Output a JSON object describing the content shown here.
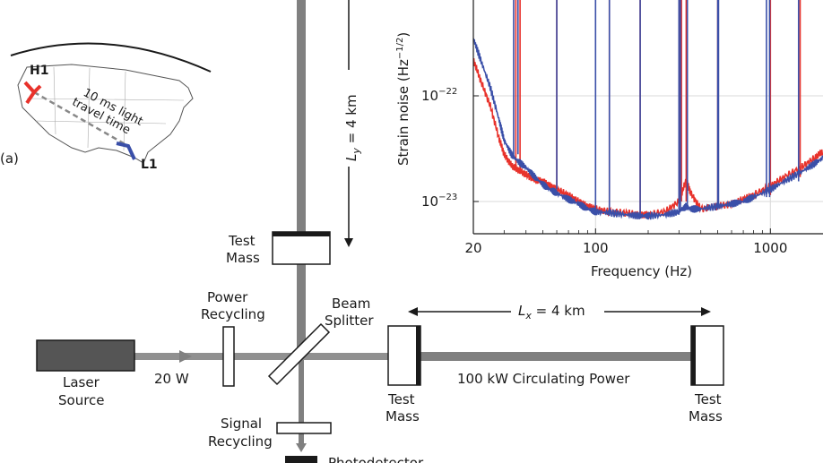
{
  "panel_label": "(a)",
  "map": {
    "site_h1": "H1",
    "site_l1": "L1",
    "travel_time_line1": "10 ms light",
    "travel_time_line2": "travel time",
    "h1_color": "#e8322b",
    "l1_color": "#3a4fa8"
  },
  "interferometer": {
    "ly_label": "L",
    "ly_sub": "y",
    "ly_value": " = 4 km",
    "lx_label": "L",
    "lx_sub": "x",
    "lx_value": " = 4 km",
    "test_mass_top_line1": "Test",
    "test_mass_top_line2": "Mass",
    "power_recycling_line1": "Power",
    "power_recycling_line2": "Recycling",
    "beam_splitter_line1": "Beam",
    "beam_splitter_line2": "Splitter",
    "laser_line1": "Laser",
    "laser_line2": "Source",
    "input_power": "20 W",
    "test_mass_near_line1": "Test",
    "test_mass_near_line2": "Mass",
    "circulating_power": "100 kW Circulating Power",
    "test_mass_far_line1": "Test",
    "test_mass_far_line2": "Mass",
    "signal_recycling_line1": "Signal",
    "signal_recycling_line2": "Recycling",
    "photodetector": "Photodetector"
  },
  "chart_data": {
    "type": "line",
    "xlabel": "Frequency (Hz)",
    "ylabel": "Strain noise (Hz",
    "ylabel_exp": "−1/2",
    "ylabel_close": ")",
    "x_scale": "log",
    "y_scale": "log",
    "xlim": [
      20,
      2000
    ],
    "ylim": [
      5e-24,
      1e-21
    ],
    "x_ticks": [
      20,
      100,
      1000
    ],
    "x_tick_labels": [
      "20",
      "100",
      "1000"
    ],
    "y_ticks": [
      1e-23,
      1e-22
    ],
    "y_tick_base": "10",
    "y_tick_exps": [
      "−23",
      "−22"
    ],
    "grid": true,
    "series": [
      {
        "color": "#e8322b",
        "x": [
          20,
          22,
          25,
          28,
          30,
          33,
          36,
          40,
          45,
          50,
          55,
          60,
          70,
          80,
          90,
          100,
          120,
          150,
          180,
          200,
          250,
          300,
          330,
          350,
          400,
          500,
          600,
          700,
          800,
          1000,
          1200,
          1500,
          1800,
          2000
        ],
        "y": [
          2.2e-22,
          1.4e-22,
          8e-23,
          4e-23,
          2.8e-23,
          2.2e-23,
          2e-23,
          1.8e-23,
          1.6e-23,
          1.55e-23,
          1.4e-23,
          1.3e-23,
          1.15e-23,
          1e-23,
          9e-24,
          8.5e-24,
          8e-24,
          7.8e-24,
          7.5e-24,
          7.5e-24,
          8e-24,
          1e-23,
          1.6e-23,
          1.2e-23,
          8.5e-24,
          9e-24,
          9.5e-24,
          1.05e-23,
          1.15e-23,
          1.4e-23,
          1.7e-23,
          2.1e-23,
          2.6e-23,
          3e-23
        ]
      },
      {
        "color": "#3a4fa8",
        "x": [
          20,
          22,
          25,
          28,
          30,
          33,
          36,
          40,
          45,
          50,
          55,
          60,
          70,
          80,
          90,
          100,
          120,
          150,
          180,
          200,
          250,
          300,
          330,
          350,
          400,
          500,
          600,
          700,
          800,
          1000,
          1200,
          1500,
          1800,
          2000
        ],
        "y": [
          3.5e-22,
          2.2e-22,
          1.2e-22,
          6e-23,
          3.8e-23,
          2.8e-23,
          2.4e-23,
          2.1e-23,
          1.7e-23,
          1.45e-23,
          1.3e-23,
          1.2e-23,
          1.05e-23,
          9.5e-24,
          8.5e-24,
          8e-24,
          7.8e-24,
          7.5e-24,
          7.3e-24,
          7.3e-24,
          7.5e-24,
          8e-24,
          9e-24,
          8.5e-24,
          8.5e-24,
          9e-24,
          9.5e-24,
          1e-23,
          1.1e-23,
          1.3e-23,
          1.55e-23,
          1.9e-23,
          2.3e-23,
          2.6e-23
        ]
      }
    ],
    "red_spike_freqs": [
      35,
      37,
      60,
      120,
      180,
      300,
      305,
      310,
      330,
      500,
      1000,
      1480
    ],
    "blue_spike_freqs": [
      34,
      36,
      60,
      100,
      120,
      180,
      300,
      306,
      335,
      500,
      505,
      950,
      990,
      1450
    ],
    "spike_peak_y": 1e-21
  }
}
